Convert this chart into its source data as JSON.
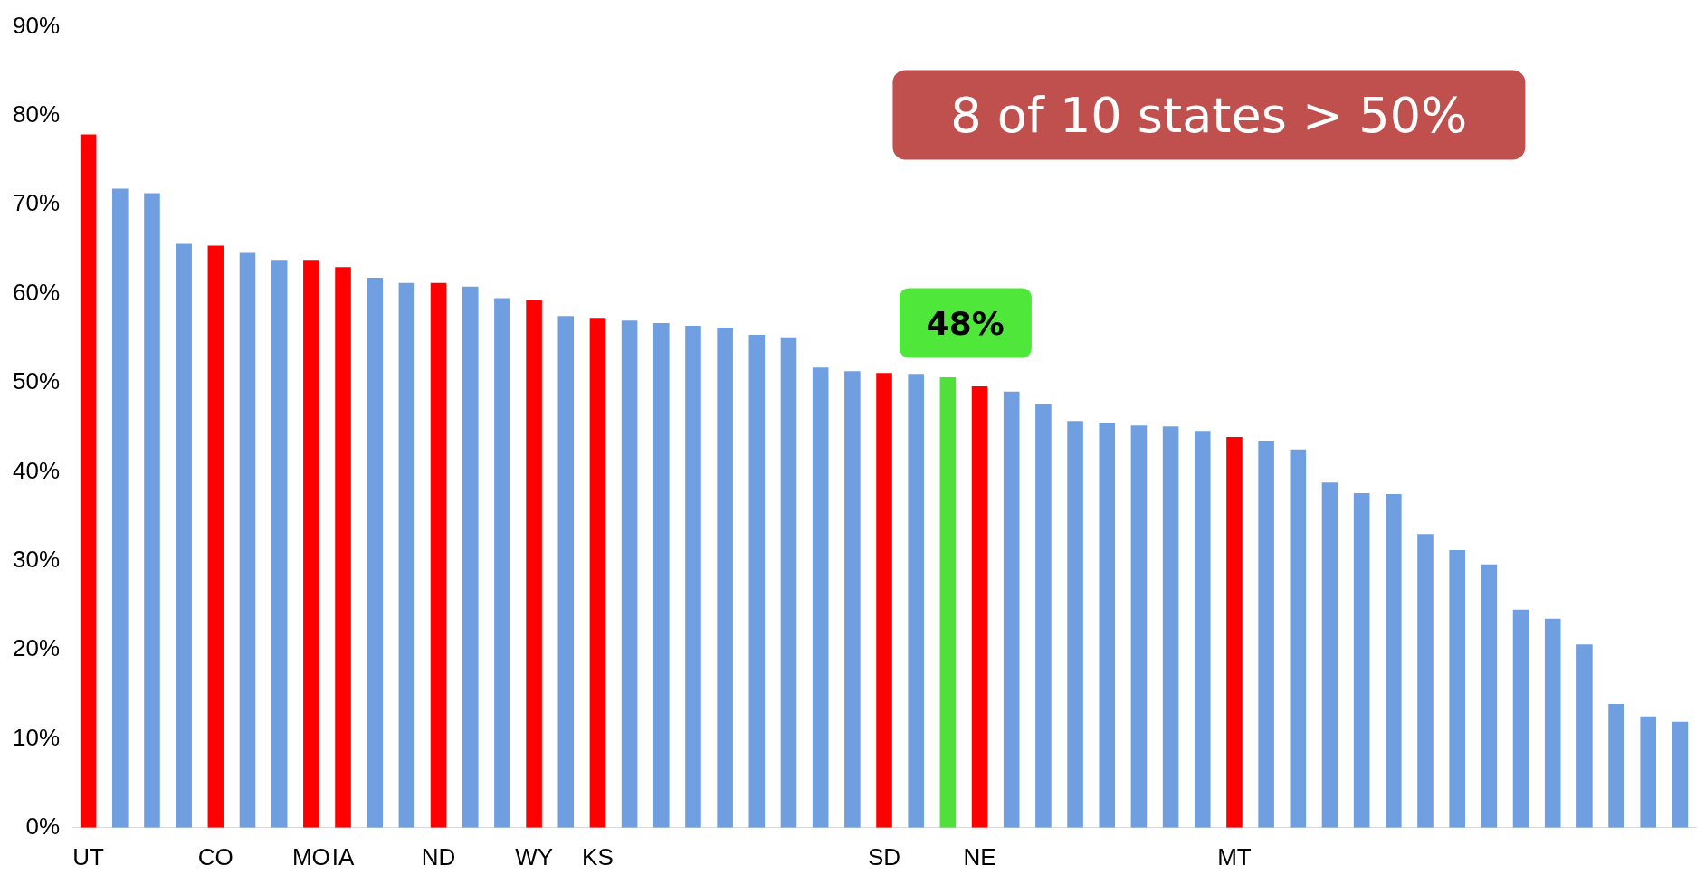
{
  "chart_data": {
    "type": "bar",
    "categories": [
      "UT",
      null,
      null,
      null,
      "CO",
      null,
      null,
      "MO",
      "IA",
      null,
      null,
      "ND",
      null,
      null,
      "WY",
      null,
      "KS",
      null,
      null,
      null,
      null,
      null,
      null,
      null,
      null,
      "SD",
      null,
      null,
      "NE",
      null,
      null,
      null,
      null,
      null,
      null,
      null,
      "MT",
      null,
      null,
      null,
      null,
      null,
      null,
      null,
      null,
      null,
      null,
      null,
      null,
      null,
      null
    ],
    "values": [
      77.9,
      71.8,
      71.3,
      65.6,
      65.4,
      64.6,
      63.8,
      63.8,
      63.0,
      61.8,
      61.2,
      61.2,
      60.8,
      59.5,
      59.3,
      57.5,
      57.3,
      57.0,
      56.7,
      56.4,
      56.2,
      55.4,
      55.1,
      51.7,
      51.3,
      51.1,
      51.0,
      50.6,
      49.6,
      49.0,
      47.6,
      45.7,
      45.5,
      45.2,
      45.1,
      44.6,
      43.9,
      43.5,
      42.5,
      38.8,
      37.6,
      37.5,
      33.0,
      31.2,
      29.6,
      24.5,
      23.5,
      20.6,
      13.9,
      12.5,
      11.9
    ],
    "colors": [
      "#ff0000",
      "#6f9fe0",
      "#6f9fe0",
      "#6f9fe0",
      "#ff0000",
      "#6f9fe0",
      "#6f9fe0",
      "#ff0000",
      "#ff0000",
      "#6f9fe0",
      "#6f9fe0",
      "#ff0000",
      "#6f9fe0",
      "#6f9fe0",
      "#ff0000",
      "#6f9fe0",
      "#ff0000",
      "#6f9fe0",
      "#6f9fe0",
      "#6f9fe0",
      "#6f9fe0",
      "#6f9fe0",
      "#6f9fe0",
      "#6f9fe0",
      "#6f9fe0",
      "#ff0000",
      "#6f9fe0",
      "#4fe03a",
      "#ff0000",
      "#6f9fe0",
      "#6f9fe0",
      "#6f9fe0",
      "#6f9fe0",
      "#6f9fe0",
      "#6f9fe0",
      "#6f9fe0",
      "#ff0000",
      "#6f9fe0",
      "#6f9fe0",
      "#6f9fe0",
      "#6f9fe0",
      "#6f9fe0",
      "#6f9fe0",
      "#6f9fe0",
      "#6f9fe0",
      "#6f9fe0",
      "#6f9fe0",
      "#6f9fe0",
      "#6f9fe0",
      "#6f9fe0",
      "#6f9fe0"
    ],
    "ylim": [
      0,
      90
    ],
    "yticks": [
      {
        "value": 0,
        "label": "0%"
      },
      {
        "value": 10,
        "label": "10%"
      },
      {
        "value": 20,
        "label": "20%"
      },
      {
        "value": 30,
        "label": "30%"
      },
      {
        "value": 40,
        "label": "40%"
      },
      {
        "value": 50,
        "label": "50%"
      },
      {
        "value": 60,
        "label": "60%"
      },
      {
        "value": 70,
        "label": "70%"
      },
      {
        "value": 80,
        "label": "80%"
      },
      {
        "value": 90,
        "label": "90%"
      }
    ],
    "annotations": [
      "8 of 10 states > 50%",
      "48%"
    ],
    "grid": false,
    "legend": false
  }
}
